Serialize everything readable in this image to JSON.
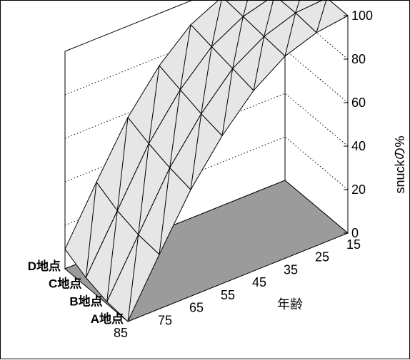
{
  "chart_data": {
    "type": "surface",
    "title": "",
    "xlabel": "年齢",
    "ylabel": "",
    "zlabel": "snuckの%",
    "x_categories": [
      "85",
      "75",
      "65",
      "55",
      "45",
      "35",
      "25",
      "15"
    ],
    "y_categories": [
      "A地点",
      "B地点",
      "C地点",
      "D地点"
    ],
    "zlim": [
      0,
      100
    ],
    "z_ticks": [
      "0",
      "20",
      "40",
      "60",
      "80",
      "100"
    ],
    "grid": true,
    "series": [
      {
        "name": "A地点",
        "values": [
          0,
          25,
          49,
          68,
          83,
          93,
          98,
          100
        ]
      },
      {
        "name": "B地点",
        "values": [
          1,
          26,
          51,
          70,
          85,
          94,
          99,
          100
        ]
      },
      {
        "name": "C地点",
        "values": [
          4,
          29,
          54,
          73,
          87,
          95,
          99,
          100
        ]
      },
      {
        "name": "D地点",
        "values": [
          9,
          34,
          58,
          76,
          89,
          96,
          99,
          100
        ]
      }
    ],
    "colors": {
      "surface": "#e6e6e6",
      "floor": "#9b9b9b",
      "grid": "#000000"
    }
  }
}
